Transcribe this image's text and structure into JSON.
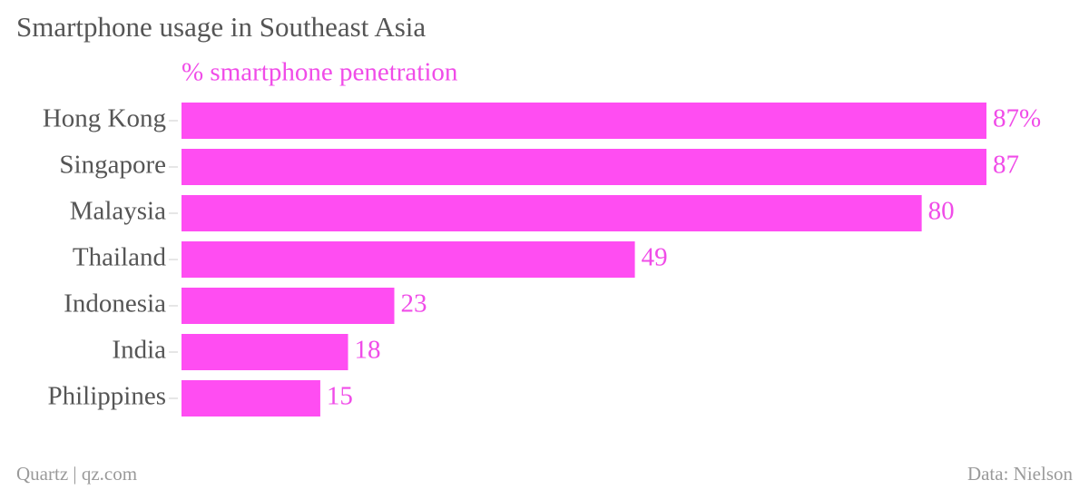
{
  "chart_data": {
    "type": "hbar",
    "title": "Smartphone usage in Southeast Asia",
    "subtitle": "% smartphone penetration",
    "categories": [
      "Hong Kong",
      "Singapore",
      "Malaysia",
      "Thailand",
      "Indonesia",
      "India",
      "Philippines"
    ],
    "values": [
      87,
      87,
      80,
      49,
      23,
      18,
      15
    ],
    "value_labels": [
      "87%",
      "87",
      "80",
      "49",
      "23",
      "18",
      "15"
    ],
    "color": "#ff4df2",
    "source_left": "Quartz | qz.com",
    "source_right": "Data: Nielson"
  }
}
